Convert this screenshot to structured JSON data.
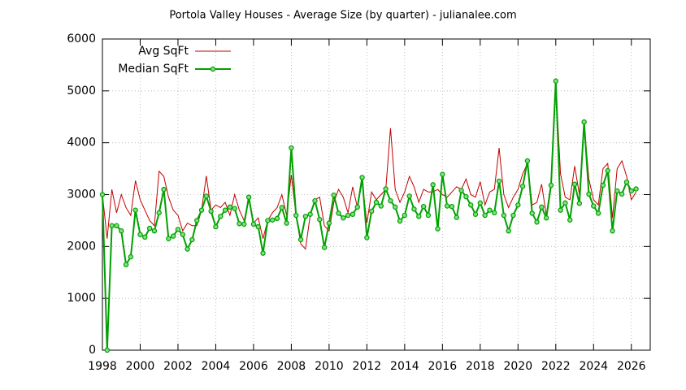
{
  "chart_data": {
    "type": "line",
    "title": "Portola Valley Houses - Average Size (by quarter) - julianalee.com",
    "x": [
      1998,
      1998.25,
      1998.5,
      1998.75,
      1999,
      1999.25,
      1999.5,
      1999.75,
      2000,
      2000.25,
      2000.5,
      2000.75,
      2001,
      2001.25,
      2001.5,
      2001.75,
      2002,
      2002.25,
      2002.5,
      2002.75,
      2003,
      2003.25,
      2003.5,
      2003.75,
      2004,
      2004.25,
      2004.5,
      2004.75,
      2005,
      2005.25,
      2005.5,
      2005.75,
      2006,
      2006.25,
      2006.5,
      2006.75,
      2007,
      2007.25,
      2007.5,
      2007.75,
      2008,
      2008.25,
      2008.5,
      2008.75,
      2009,
      2009.25,
      2009.5,
      2009.75,
      2010,
      2010.25,
      2010.5,
      2010.75,
      2011,
      2011.25,
      2011.5,
      2011.75,
      2012,
      2012.25,
      2012.5,
      2012.75,
      2013,
      2013.25,
      2013.5,
      2013.75,
      2014,
      2014.25,
      2014.5,
      2014.75,
      2015,
      2015.25,
      2015.5,
      2015.75,
      2016,
      2016.25,
      2016.5,
      2016.75,
      2017,
      2017.25,
      2017.5,
      2017.75,
      2018,
      2018.25,
      2018.5,
      2018.75,
      2019,
      2019.25,
      2019.5,
      2019.75,
      2020,
      2020.25,
      2020.5,
      2020.75,
      2021,
      2021.25,
      2021.5,
      2021.75,
      2022,
      2022.25,
      2022.5,
      2022.75,
      2023,
      2023.25,
      2023.5,
      2023.75,
      2024,
      2024.25,
      2024.5,
      2024.75,
      2025,
      2025.25,
      2025.5,
      2025.75,
      2026,
      2026.25
    ],
    "series": [
      {
        "name": "Avg SqFt",
        "color": "#c00000",
        "markers": false,
        "values": [
          3000,
          2150,
          3100,
          2650,
          3000,
          2750,
          2600,
          3270,
          2900,
          2700,
          2500,
          2400,
          3450,
          3350,
          2950,
          2700,
          2600,
          2300,
          2450,
          2400,
          2400,
          2700,
          3360,
          2700,
          2800,
          2750,
          2850,
          2600,
          3000,
          2700,
          2500,
          2900,
          2450,
          2550,
          2150,
          2500,
          2650,
          2750,
          3000,
          2600,
          3380,
          2600,
          2050,
          1950,
          2600,
          2900,
          2950,
          2400,
          2300,
          2850,
          3100,
          2950,
          2650,
          3150,
          2750,
          3250,
          2450,
          3050,
          2900,
          3000,
          3100,
          4280,
          3100,
          2850,
          3050,
          3350,
          3150,
          2850,
          3100,
          3050,
          3050,
          3100,
          3000,
          2950,
          3050,
          3150,
          3100,
          3300,
          3000,
          2950,
          3250,
          2800,
          3050,
          3100,
          3900,
          3000,
          2750,
          2950,
          3100,
          3400,
          3600,
          2800,
          2850,
          3200,
          2600,
          3250,
          5120,
          3400,
          2950,
          2900,
          3550,
          3000,
          4380,
          3300,
          2900,
          2800,
          3500,
          3600,
          2550,
          3500,
          3650,
          3350,
          2900,
          3050
        ]
      },
      {
        "name": "Median SqFt",
        "color": "#00a000",
        "markers": true,
        "values": [
          3000,
          0,
          2400,
          2400,
          2300,
          1650,
          1800,
          2700,
          2230,
          2180,
          2350,
          2300,
          2650,
          3100,
          2150,
          2200,
          2330,
          2230,
          1950,
          2130,
          2500,
          2700,
          2970,
          2680,
          2380,
          2580,
          2700,
          2760,
          2730,
          2440,
          2430,
          2950,
          2430,
          2380,
          1870,
          2500,
          2510,
          2540,
          2750,
          2450,
          3900,
          2600,
          2130,
          2580,
          2620,
          2880,
          2520,
          1980,
          2450,
          2990,
          2640,
          2550,
          2600,
          2620,
          2760,
          3330,
          2170,
          2680,
          2850,
          2780,
          3110,
          2880,
          2760,
          2490,
          2600,
          2970,
          2720,
          2580,
          2770,
          2600,
          3190,
          2340,
          3390,
          2780,
          2770,
          2560,
          3080,
          2960,
          2800,
          2620,
          2840,
          2600,
          2700,
          2650,
          3260,
          2600,
          2300,
          2600,
          2800,
          3160,
          3650,
          2640,
          2470,
          2760,
          2550,
          3180,
          5190,
          2700,
          2840,
          2510,
          3200,
          2830,
          4400,
          3010,
          2780,
          2640,
          3180,
          3460,
          2300,
          3070,
          3010,
          3240,
          3070,
          3110
        ]
      }
    ],
    "xlim": [
      1998,
      2027
    ],
    "xticks": [
      1998,
      2000,
      2002,
      2004,
      2006,
      2008,
      2010,
      2012,
      2014,
      2016,
      2018,
      2020,
      2022,
      2024,
      2026
    ],
    "ylim": [
      0,
      6000
    ],
    "yticks": [
      0,
      1000,
      2000,
      3000,
      4000,
      5000,
      6000
    ],
    "grid": true,
    "legend": "top-left"
  }
}
